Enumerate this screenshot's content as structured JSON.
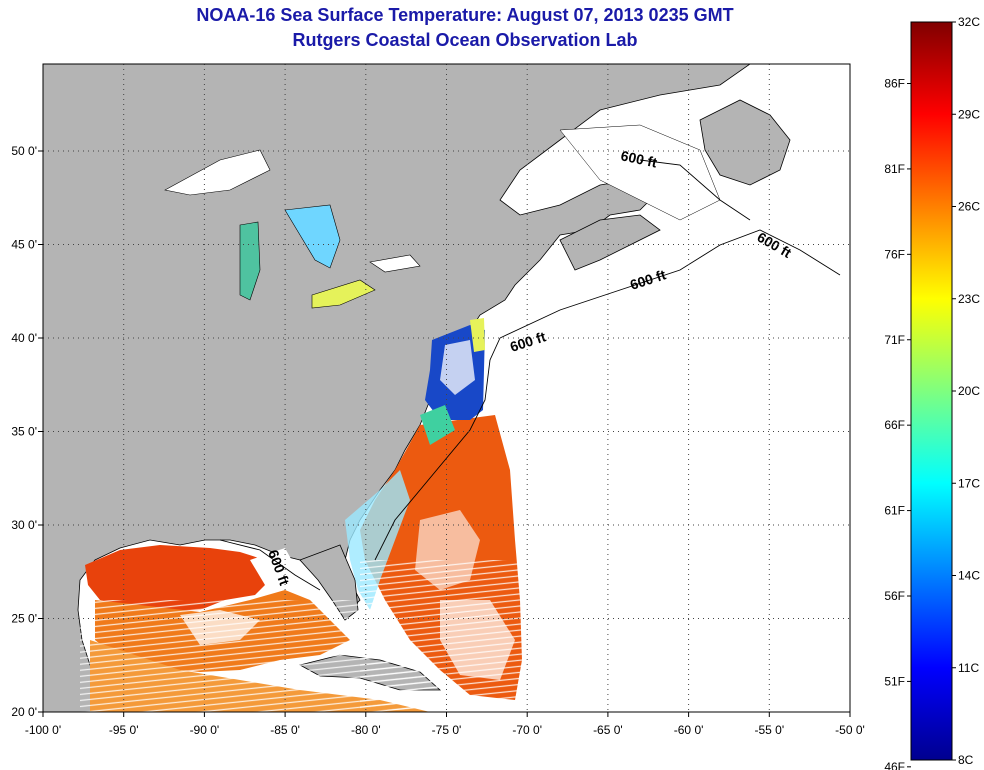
{
  "header": {
    "title": "NOAA-16 Sea Surface Temperature:  August 07, 2013 0235 GMT",
    "subtitle": "Rutgers Coastal Ocean Observation Lab"
  },
  "map": {
    "lon_ticks": [
      "-100 0'",
      "-95 0'",
      "-90 0'",
      "-85 0'",
      "-80 0'",
      "-75 0'",
      "-70 0'",
      "-65 0'",
      "-60 0'",
      "-55 0'",
      "-50 0'"
    ],
    "lat_ticks": [
      "20 0'",
      "25 0'",
      "30 0'",
      "35 0'",
      "40 0'",
      "45 0'",
      "50 0'"
    ],
    "contour_labels": [
      "600 ft",
      "600 ft",
      "600 ft",
      "600 ft",
      "600 ft"
    ],
    "land_color": "#b4b4b4",
    "no_data_color": "#ffffff"
  },
  "colorbar": {
    "celsius_labels": [
      "32C",
      "29C",
      "26C",
      "23C",
      "20C",
      "17C",
      "14C",
      "11C",
      "8C"
    ],
    "fahrenheit_labels": [
      "86F",
      "81F",
      "76F",
      "71F",
      "66F",
      "61F",
      "56F",
      "51F",
      "46F"
    ],
    "colormap": "jet",
    "range_c": [
      8,
      32
    ]
  }
}
